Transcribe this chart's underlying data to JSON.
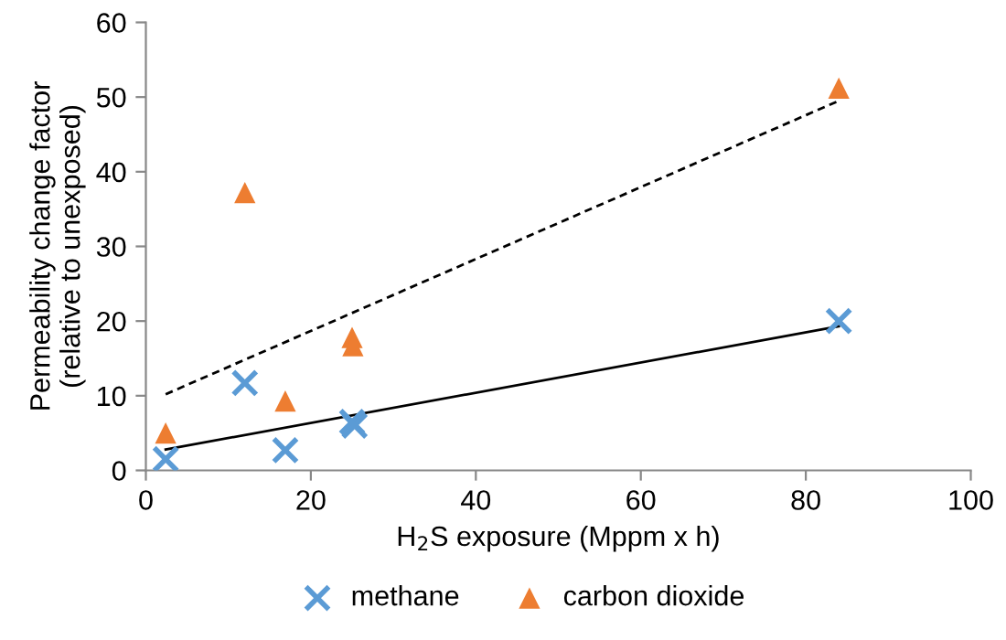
{
  "chart_data": {
    "type": "scatter",
    "xlabel": "H$_{2}$S exposure (Mppm x h)",
    "ylabel": "Permeability change factor\n(relative to unexposed)",
    "xlim": [
      0,
      100
    ],
    "ylim": [
      0,
      60
    ],
    "xticks": [
      0,
      20,
      40,
      60,
      80,
      100
    ],
    "yticks": [
      0,
      10,
      20,
      30,
      40,
      50,
      60
    ],
    "grid": false,
    "legend": "bottom",
    "series": [
      {
        "name": "methane",
        "color": "#5b9bd5",
        "marker": "cross",
        "x": [
          2.4,
          12,
          16.9,
          25,
          25.3,
          84
        ],
        "values": [
          1.5,
          11.7,
          2.7,
          6.5,
          6,
          20
        ]
      },
      {
        "name": "carbon dioxide",
        "color": "#ed7d31",
        "marker": "triangle",
        "x": [
          2.4,
          12,
          16.9,
          25,
          25.1,
          84
        ],
        "values": [
          5,
          37.2,
          9.3,
          17.8,
          16.7,
          51.2
        ]
      },
      {
        "type": "line",
        "color": "#000000",
        "line_style": "solid",
        "x": [
          2.4,
          84
        ],
        "values": [
          2.8,
          19.3
        ]
      },
      {
        "type": "line",
        "color": "#000000",
        "line_style": "dashed",
        "x": [
          2.4,
          84
        ],
        "values": [
          10.2,
          49.5
        ]
      }
    ]
  }
}
